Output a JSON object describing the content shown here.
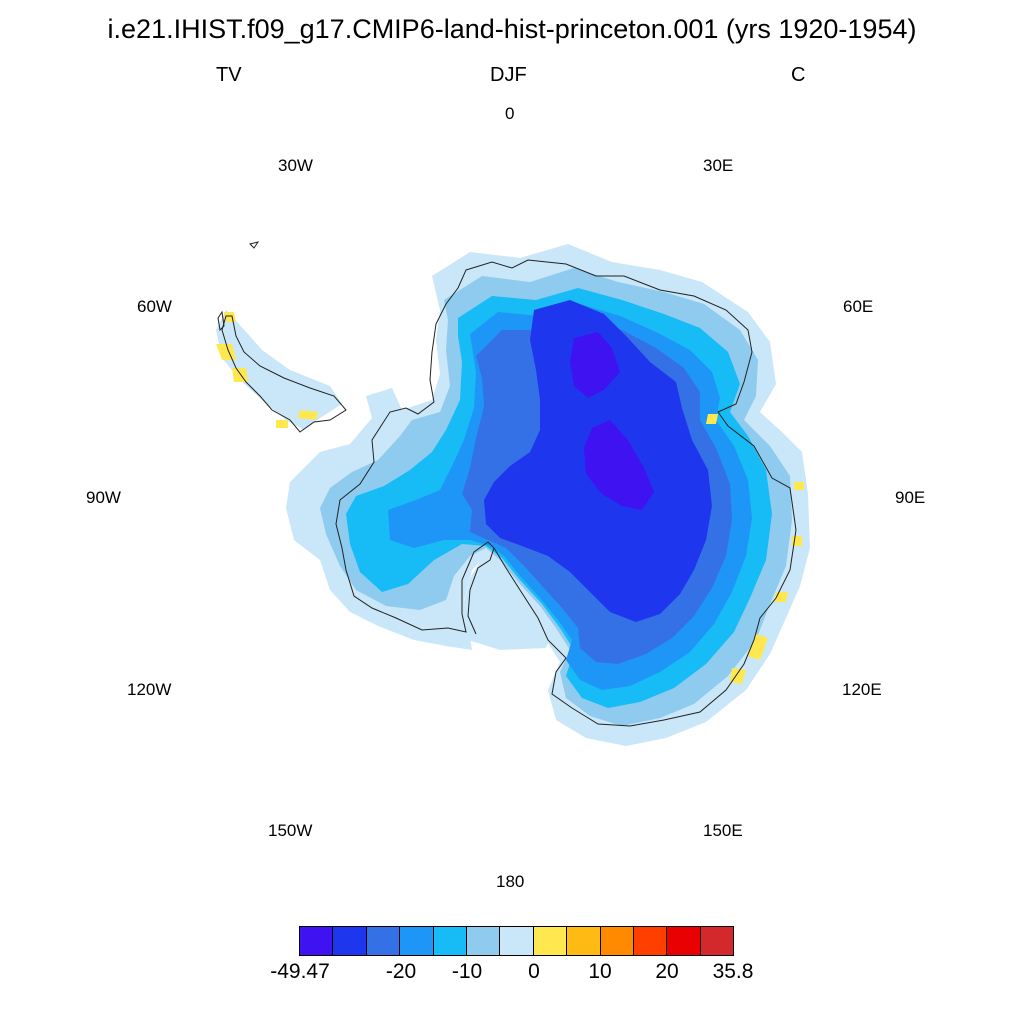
{
  "title": "i.e21.IHIST.f09_g17.CMIP6-land-hist-princeton.001 (yrs 1920-1954)",
  "left_label": "TV",
  "center_label": "DJF",
  "right_label": "C",
  "lon_labels": {
    "l0": "0",
    "l30e": "30E",
    "l60e": "60E",
    "l90e": "90E",
    "l120e": "120E",
    "l150e": "150E",
    "l180": "180",
    "l150w": "150W",
    "l120w": "120W",
    "l90w": "90W",
    "l60w": "60W",
    "l30w": "30W"
  },
  "colorbar": {
    "colors": [
      "#3f12f2",
      "#1e36ee",
      "#3571e6",
      "#1e96f7",
      "#17bbf5",
      "#8ecbee",
      "#c9e7f8",
      "#ffe84f",
      "#ffbb14",
      "#ff8a00",
      "#ff3f00",
      "#e90000",
      "#d3292c"
    ],
    "labels": [
      "-49.47",
      "-20",
      "-10",
      "0",
      "10",
      "20",
      "35.8"
    ]
  }
}
